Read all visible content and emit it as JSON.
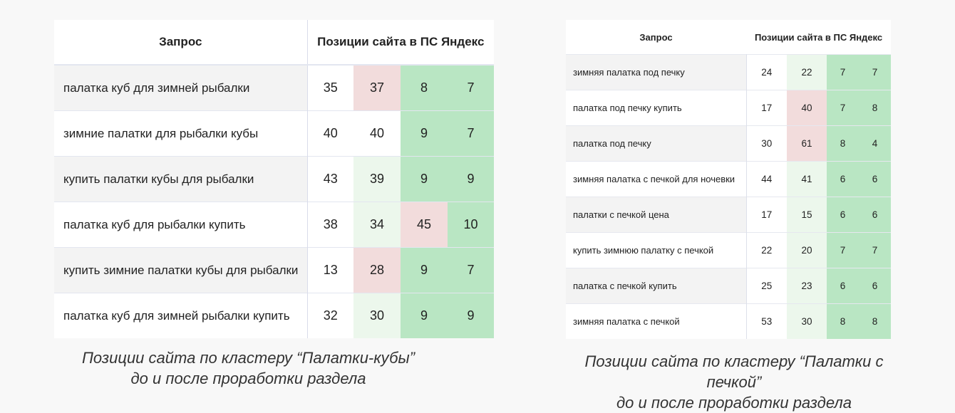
{
  "left_table": {
    "header_query": "Запрос",
    "header_positions": "Позиции сайта в ПС Яндекс",
    "rows": [
      {
        "query": "палатка куб для зимней рыбалки",
        "values": [
          "35",
          "37",
          "8",
          "7"
        ],
        "colors": [
          "w",
          "p",
          "g",
          "g"
        ]
      },
      {
        "query": "зимние палатки для рыбалки кубы",
        "values": [
          "40",
          "40",
          "9",
          "7"
        ],
        "colors": [
          "w",
          "w",
          "g",
          "g"
        ]
      },
      {
        "query": "купить палатки кубы для рыбалки",
        "values": [
          "43",
          "39",
          "9",
          "9"
        ],
        "colors": [
          "w",
          "lg",
          "g",
          "g"
        ]
      },
      {
        "query": "палатка куб для рыбалки купить",
        "values": [
          "38",
          "34",
          "45",
          "10"
        ],
        "colors": [
          "w",
          "lg",
          "p",
          "g"
        ]
      },
      {
        "query": "купить зимние палатки кубы для рыбалки",
        "values": [
          "13",
          "28",
          "9",
          "7"
        ],
        "colors": [
          "w",
          "p",
          "g",
          "g"
        ]
      },
      {
        "query": "палатка куб для зимней рыбалки купить",
        "values": [
          "32",
          "30",
          "9",
          "9"
        ],
        "colors": [
          "w",
          "lg",
          "g",
          "g"
        ]
      }
    ]
  },
  "right_table": {
    "header_query": "Запрос",
    "header_positions": "Позиции сайта в ПС Яндекс",
    "rows": [
      {
        "query": "зимняя палатка под печку",
        "values": [
          "24",
          "22",
          "7",
          "7"
        ],
        "colors": [
          "w",
          "lg",
          "g",
          "g"
        ]
      },
      {
        "query": "палатка под печку купить",
        "values": [
          "17",
          "40",
          "7",
          "8"
        ],
        "colors": [
          "w",
          "p",
          "g",
          "g"
        ]
      },
      {
        "query": "палатка под печку",
        "values": [
          "30",
          "61",
          "8",
          "4"
        ],
        "colors": [
          "w",
          "p",
          "g",
          "g"
        ]
      },
      {
        "query": "зимняя палатка с печкой для ночевки",
        "values": [
          "44",
          "41",
          "6",
          "6"
        ],
        "colors": [
          "w",
          "lg",
          "g",
          "g"
        ]
      },
      {
        "query": "палатки с печкой цена",
        "values": [
          "17",
          "15",
          "6",
          "6"
        ],
        "colors": [
          "w",
          "lg",
          "g",
          "g"
        ]
      },
      {
        "query": "купить зимнюю палатку с печкой",
        "values": [
          "22",
          "20",
          "7",
          "7"
        ],
        "colors": [
          "w",
          "lg",
          "g",
          "g"
        ]
      },
      {
        "query": "палатка с печкой купить",
        "values": [
          "25",
          "23",
          "6",
          "6"
        ],
        "colors": [
          "w",
          "lg",
          "g",
          "g"
        ]
      },
      {
        "query": "зимняя палатка с печкой",
        "values": [
          "53",
          "30",
          "8",
          "8"
        ],
        "colors": [
          "w",
          "lg",
          "g",
          "g"
        ]
      }
    ]
  },
  "captions": {
    "left_line1": "Позиции сайта по кластеру “Палатки-кубы”",
    "left_line2": "до и после проработки раздела",
    "right_line1": "Позиции сайта по кластеру “Палатки с печкой”",
    "right_line2": "до и после проработки раздела"
  },
  "colors": {
    "red_cell": "#f2dcdc",
    "light_green_cell": "#ecf7ec",
    "green_cell": "#b9e6c3",
    "query_alt_row": "#f3f3f3"
  }
}
